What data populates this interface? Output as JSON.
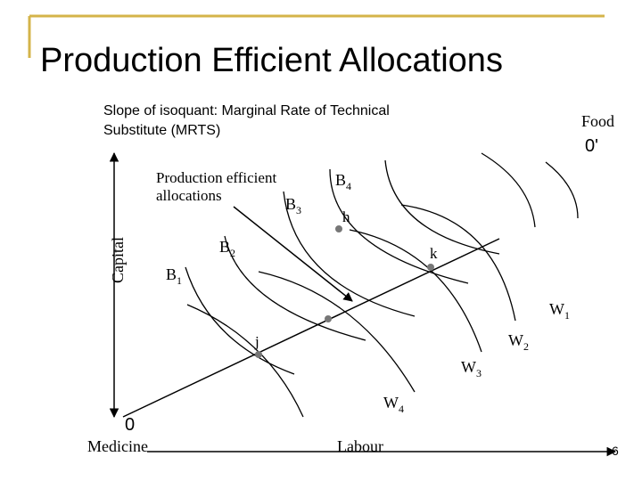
{
  "header": {
    "title": "Production Efficient Allocations"
  },
  "note": {
    "lines": [
      "Slope of isoquant: Marginal Rate of Technical",
      "Substitute (MRTS)"
    ]
  },
  "origin_top": {
    "good": "Food",
    "label": "0'"
  },
  "origin_bottom": {
    "good": "Medicine",
    "label": "0"
  },
  "axes": {
    "vertical": "Capital",
    "horizontal": "Labour"
  },
  "callout": {
    "lines": [
      "Production efficient",
      "allocations"
    ]
  },
  "labels": [
    {
      "text": "B",
      "sub": "1"
    },
    {
      "text": "B",
      "sub": "2"
    },
    {
      "text": "B",
      "sub": "3"
    },
    {
      "text": "B",
      "sub": "4"
    },
    {
      "text": "W",
      "sub": "1"
    },
    {
      "text": "W",
      "sub": "2"
    },
    {
      "text": "W",
      "sub": "3"
    },
    {
      "text": "W",
      "sub": "4"
    }
  ],
  "points": [
    "h",
    "k",
    "j"
  ],
  "page_number": "6"
}
